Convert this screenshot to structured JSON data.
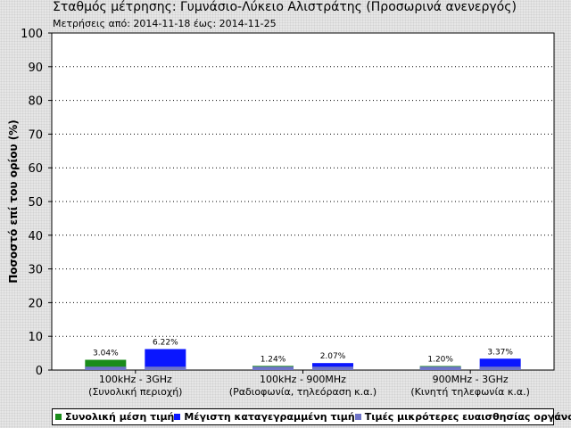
{
  "header": {
    "title": "Σταθμός μέτρησης: Γυμνάσιο-Λύκειο Αλιστράτης (Προσωρινά ανενεργός)",
    "subtitle": "Μετρήσεις από: 2014-11-18 έως: 2014-11-25"
  },
  "chart_data": {
    "type": "bar",
    "ylabel": "Ποσοστό επί του ορίου (%)",
    "ylim": [
      0,
      100
    ],
    "yticks": [
      "0",
      "10",
      "20",
      "30",
      "40",
      "50",
      "60",
      "70",
      "80",
      "90",
      "100"
    ],
    "grid": true,
    "categories": [
      {
        "line1": "100kHz - 3GHz",
        "line2": "(Συνολική περιοχή)"
      },
      {
        "line1": "100kHz - 900MHz",
        "line2": "(Ραδιοφωνία, τηλεόραση κ.α.)"
      },
      {
        "line1": "900MHz - 3GHz",
        "line2": "(Κινητή τηλεφωνία κ.α.)"
      }
    ],
    "series": [
      {
        "name": "Συνολική μέση τιμή",
        "color": "#1a8c1a",
        "values": [
          3.04,
          1.24,
          1.2
        ],
        "labels": [
          "3.04%",
          "1.24%",
          "1.20%"
        ]
      },
      {
        "name": "Μέγιστη καταγεγραμμένη τιμή",
        "color": "#0a16ff",
        "values": [
          6.22,
          2.07,
          3.37
        ],
        "labels": [
          "6.22%",
          "2.07%",
          "3.37%"
        ]
      }
    ],
    "sensitivity": {
      "name": "Τιμές μικρότερες ευαισθησίας οργάνου",
      "color": "#6f74c8",
      "value": 1.0
    },
    "legend_position": "bottom"
  }
}
